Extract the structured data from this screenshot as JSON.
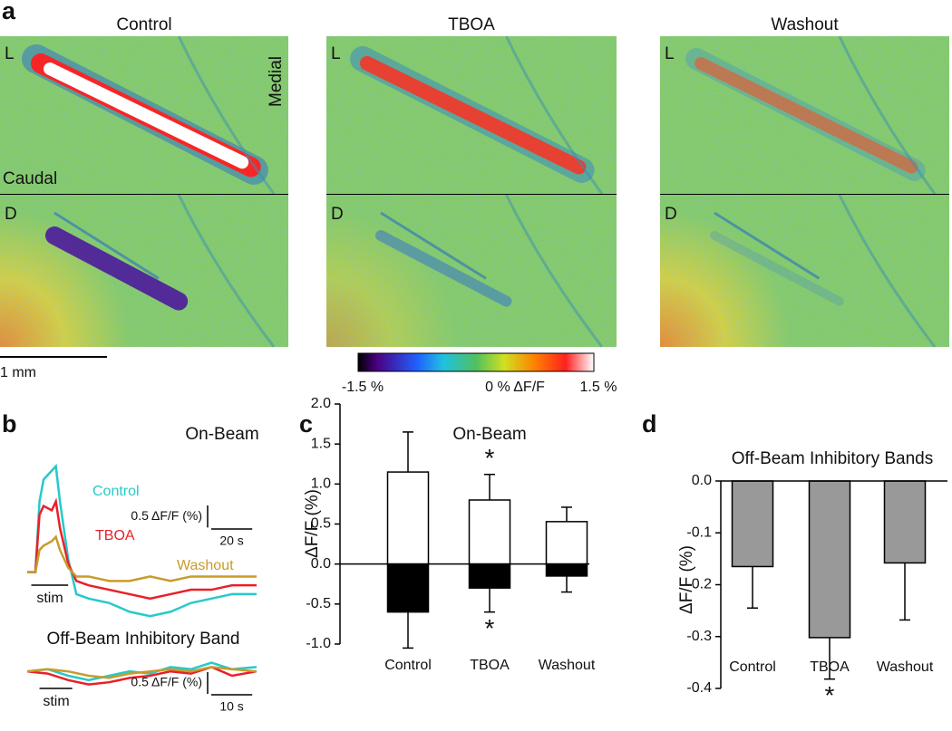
{
  "panel_labels": [
    "a",
    "b",
    "c",
    "d"
  ],
  "imaging": {
    "conditions": [
      "Control",
      "TBOA",
      "Washout"
    ],
    "rows": [
      "L",
      "D"
    ],
    "orientation": [
      "Medial",
      "Caudal"
    ],
    "scale_bar": "1 mm",
    "colorbar": [
      "-1.5 %",
      "0 % ΔF/F",
      "1.5 %"
    ]
  },
  "chart_data": [
    {
      "type": "line",
      "title": "On-Beam",
      "x": [
        0,
        4,
        6,
        8,
        12,
        14,
        16,
        20,
        24,
        30,
        40,
        50,
        60,
        70,
        80,
        90,
        100,
        112
      ],
      "xlim": [
        0,
        112
      ],
      "ylim": [
        -1.2,
        2.6
      ],
      "series": [
        {
          "name": "Control",
          "color": "#27c9c9",
          "values": [
            0,
            0,
            1.6,
            2.1,
            2.3,
            2.4,
            1.6,
            0.3,
            -0.5,
            -0.6,
            -0.7,
            -0.9,
            -1.0,
            -0.9,
            -0.7,
            -0.6,
            -0.5,
            -0.5
          ]
        },
        {
          "name": "TBOA",
          "color": "#e8202a",
          "values": [
            0,
            0,
            1.3,
            1.5,
            1.4,
            1.6,
            1.0,
            0.2,
            -0.2,
            -0.3,
            -0.4,
            -0.5,
            -0.6,
            -0.5,
            -0.4,
            -0.4,
            -0.3,
            -0.3
          ]
        },
        {
          "name": "Washout",
          "color": "#c89b2a",
          "values": [
            0,
            0,
            0.5,
            0.6,
            0.7,
            0.8,
            0.5,
            0.1,
            -0.1,
            -0.1,
            -0.2,
            -0.2,
            -0.1,
            -0.2,
            -0.1,
            -0.1,
            -0.1,
            -0.1
          ]
        }
      ],
      "stim": {
        "label": "stim",
        "start": 2,
        "end": 20
      },
      "y_scale_bar": {
        "value": 0.5,
        "label": "0.5 ΔF/F (%)"
      },
      "x_scale_bar": {
        "value": 20,
        "label": "20 s"
      }
    },
    {
      "type": "line",
      "title": "Off-Beam Inhibitory Band",
      "x": [
        0,
        5,
        10,
        15,
        20,
        25,
        30,
        35,
        40,
        45,
        50,
        56
      ],
      "xlim": [
        0,
        56
      ],
      "ylim": [
        -0.6,
        0.4
      ],
      "series": [
        {
          "color": "#27c9c9",
          "values": [
            0,
            0.05,
            -0.1,
            -0.2,
            -0.1,
            0,
            -0.05,
            0.1,
            0.05,
            0.2,
            0.05,
            0.1
          ]
        },
        {
          "color": "#e8202a",
          "values": [
            0,
            -0.05,
            -0.2,
            -0.3,
            -0.25,
            -0.15,
            -0.1,
            0,
            -0.05,
            0.1,
            -0.1,
            0
          ]
        },
        {
          "color": "#c89b2a",
          "values": [
            0,
            0.05,
            0,
            -0.1,
            -0.15,
            -0.05,
            0,
            0.05,
            0,
            0.1,
            0.05,
            0
          ]
        }
      ],
      "stim": {
        "label": "stim",
        "start": 3,
        "end": 11
      },
      "y_scale_bar": {
        "value": 0.5,
        "label": "0.5 ΔF/F (%)"
      },
      "x_scale_bar": {
        "value": 10,
        "label": "10 s"
      }
    },
    {
      "type": "bar",
      "title": "On-Beam",
      "y_label": "ΔF/F (%)",
      "categories": [
        "Control",
        "TBOA",
        "Washout"
      ],
      "series": [
        {
          "color": "#ffffff",
          "values": [
            1.15,
            0.8,
            0.53
          ],
          "errors": [
            0.5,
            0.32,
            0.18
          ],
          "significance": [
            null,
            "*",
            null
          ]
        },
        {
          "color": "#000000",
          "values": [
            -0.6,
            -0.3,
            -0.15
          ],
          "errors": [
            0.45,
            0.3,
            0.2
          ],
          "significance": [
            null,
            "*",
            null
          ]
        }
      ],
      "ylim": [
        -1.0,
        2.0
      ],
      "yticks": [
        {
          "value": -1,
          "label": "-1.0"
        },
        -0.5,
        {
          "value": 0,
          "label": "0.0"
        },
        0.5,
        {
          "value": 1,
          "label": "1.0"
        },
        1.5,
        {
          "value": 2,
          "label": "2.0"
        }
      ]
    },
    {
      "type": "bar",
      "title": "Off-Beam Inhibitory Bands",
      "y_label": "ΔF/F (%)",
      "categories": [
        "Control",
        "TBOA",
        "Washout"
      ],
      "series": [
        {
          "color": "#999999",
          "values": [
            -0.165,
            -0.302,
            -0.158
          ],
          "errors": [
            0.08,
            0.08,
            0.11
          ],
          "significance": [
            null,
            "*",
            null
          ]
        }
      ],
      "ylim": [
        -0.4,
        0.0
      ],
      "yticks": [
        -0.4,
        -0.3,
        -0.2,
        -0.1,
        {
          "value": 0,
          "label": "0.0"
        }
      ]
    }
  ]
}
